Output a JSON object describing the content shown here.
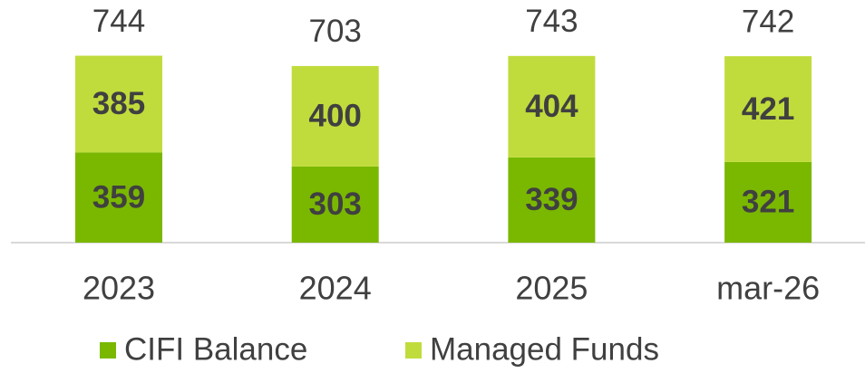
{
  "chart_data": {
    "type": "stacked_bar",
    "categories": [
      "2023",
      "2024",
      "2025",
      "mar-26"
    ],
    "series": [
      {
        "name": "CIFI Balance",
        "color": "#7ab800",
        "values": [
          359,
          303,
          339,
          321
        ]
      },
      {
        "name": "Managed Funds",
        "color": "#c0dc3c",
        "values": [
          385,
          400,
          404,
          421
        ]
      }
    ],
    "totals": [
      744,
      703,
      743,
      742
    ]
  }
}
